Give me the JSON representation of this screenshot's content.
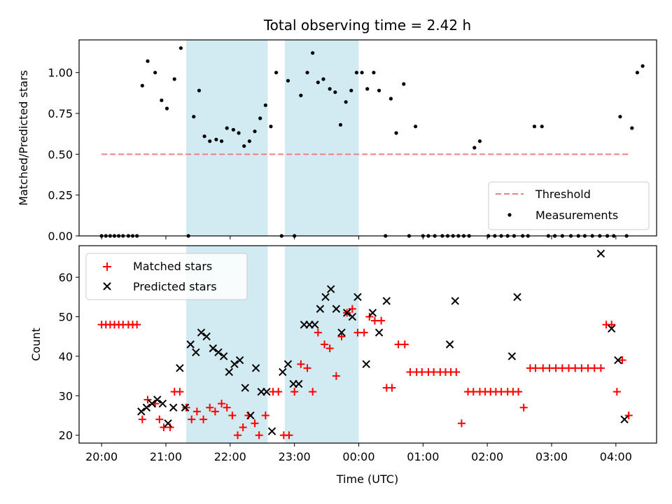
{
  "chart_data": [
    {
      "type": "scatter",
      "title": "Total observing time = 2.42 h",
      "xlabel": "",
      "ylabel": "Matched/Predicted stars",
      "xlim": [
        "19:39",
        "04:38"
      ],
      "ylim": [
        0,
        1.2
      ],
      "yticks": [
        "0.00",
        "0.25",
        "0.50",
        "0.75",
        "1.00"
      ],
      "shaded_spans": [
        [
          "21:19",
          "22:35"
        ],
        [
          "22:51",
          "00:00"
        ]
      ],
      "threshold": {
        "value": 0.5,
        "x_range": [
          "20:00",
          "04:12"
        ],
        "color": "#f08080",
        "style": "dashed"
      },
      "legend": {
        "position": "lower right",
        "entries": [
          "Threshold",
          "Measurements"
        ]
      },
      "series": [
        {
          "name": "Measurements",
          "marker": "dot",
          "color": "#000000",
          "points": [
            [
              "20:00",
              0
            ],
            [
              "20:04",
              0
            ],
            [
              "20:08",
              0
            ],
            [
              "20:12",
              0
            ],
            [
              "20:16",
              0
            ],
            [
              "20:20",
              0
            ],
            [
              "20:25",
              0
            ],
            [
              "20:29",
              0
            ],
            [
              "20:33",
              0
            ],
            [
              "20:38",
              0.92
            ],
            [
              "20:43",
              1.07
            ],
            [
              "20:50",
              1.0
            ],
            [
              "20:56",
              0.83
            ],
            [
              "21:01",
              0.78
            ],
            [
              "21:08",
              0.96
            ],
            [
              "21:14",
              1.15
            ],
            [
              "21:21",
              0
            ],
            [
              "21:26",
              0.73
            ],
            [
              "21:31",
              0.89
            ],
            [
              "21:36",
              0.61
            ],
            [
              "21:41",
              0.58
            ],
            [
              "21:47",
              0.59
            ],
            [
              "21:52",
              0.58
            ],
            [
              "21:57",
              0.66
            ],
            [
              "22:03",
              0.65
            ],
            [
              "22:08",
              0.63
            ],
            [
              "22:13",
              0.55
            ],
            [
              "22:18",
              0.58
            ],
            [
              "22:23",
              0.64
            ],
            [
              "22:28",
              0.72
            ],
            [
              "22:33",
              0.8
            ],
            [
              "22:38",
              0.67
            ],
            [
              "22:43",
              1.0
            ],
            [
              "22:48",
              0
            ],
            [
              "22:54",
              0.95
            ],
            [
              "23:00",
              0
            ],
            [
              "23:06",
              0.86
            ],
            [
              "23:12",
              1.0
            ],
            [
              "23:17",
              1.12
            ],
            [
              "23:22",
              0.94
            ],
            [
              "23:27",
              0.96
            ],
            [
              "23:33",
              0.9
            ],
            [
              "23:38",
              0.88
            ],
            [
              "23:43",
              0.68
            ],
            [
              "23:48",
              0.82
            ],
            [
              "23:53",
              0.89
            ],
            [
              "23:58",
              1.0
            ],
            [
              "00:03",
              1.0
            ],
            [
              "00:08",
              0.9
            ],
            [
              "00:14",
              1.0
            ],
            [
              "00:19",
              0.89
            ],
            [
              "00:25",
              0
            ],
            [
              "00:30",
              0.84
            ],
            [
              "00:35",
              0.63
            ],
            [
              "00:42",
              0.93
            ],
            [
              "00:47",
              0
            ],
            [
              "00:53",
              0.67
            ],
            [
              "01:00",
              0
            ],
            [
              "01:05",
              0
            ],
            [
              "01:11",
              0
            ],
            [
              "01:18",
              0
            ],
            [
              "01:23",
              0
            ],
            [
              "01:28",
              0
            ],
            [
              "01:33",
              0
            ],
            [
              "01:38",
              0
            ],
            [
              "01:43",
              0
            ],
            [
              "01:48",
              0.54
            ],
            [
              "01:53",
              0.58
            ],
            [
              "02:01",
              0
            ],
            [
              "02:07",
              0
            ],
            [
              "02:13",
              0
            ],
            [
              "02:19",
              0
            ],
            [
              "02:25",
              0
            ],
            [
              "02:33",
              0
            ],
            [
              "02:38",
              0
            ],
            [
              "02:44",
              0.67
            ],
            [
              "02:51",
              0.67
            ],
            [
              "02:57",
              0
            ],
            [
              "03:03",
              0
            ],
            [
              "03:10",
              0
            ],
            [
              "03:18",
              0
            ],
            [
              "03:25",
              0
            ],
            [
              "03:31",
              0
            ],
            [
              "03:38",
              0
            ],
            [
              "03:45",
              0
            ],
            [
              "03:52",
              0
            ],
            [
              "03:58",
              0
            ],
            [
              "04:04",
              0.73
            ],
            [
              "04:10",
              0
            ],
            [
              "04:15",
              0.66
            ],
            [
              "04:20",
              1.0
            ],
            [
              "04:25",
              1.04
            ]
          ]
        }
      ]
    },
    {
      "type": "scatter",
      "title": "",
      "xlabel": "Time (UTC)",
      "ylabel": "Count",
      "xlim": [
        "19:39",
        "04:38"
      ],
      "ylim": [
        18,
        68
      ],
      "yticks": [
        "20",
        "30",
        "40",
        "50",
        "60"
      ],
      "xticks": [
        "20:00",
        "21:00",
        "22:00",
        "23:00",
        "00:00",
        "01:00",
        "02:00",
        "03:00",
        "04:00"
      ],
      "shaded_spans": [
        [
          "21:19",
          "22:35"
        ],
        [
          "22:51",
          "00:00"
        ]
      ],
      "legend": {
        "position": "upper left",
        "entries": [
          "Matched stars",
          "Predicted stars"
        ]
      },
      "series": [
        {
          "name": "Matched stars",
          "marker": "plus",
          "color": "#ff0000",
          "points": [
            [
              "20:00",
              48
            ],
            [
              "20:04",
              48
            ],
            [
              "20:08",
              48
            ],
            [
              "20:12",
              48
            ],
            [
              "20:16",
              48
            ],
            [
              "20:20",
              48
            ],
            [
              "20:25",
              48
            ],
            [
              "20:29",
              48
            ],
            [
              "20:33",
              48
            ],
            [
              "20:38",
              24
            ],
            [
              "20:43",
              29
            ],
            [
              "20:50",
              28
            ],
            [
              "20:54",
              24
            ],
            [
              "20:58",
              22
            ],
            [
              "21:04",
              22
            ],
            [
              "21:08",
              31
            ],
            [
              "21:13",
              31
            ],
            [
              "21:19",
              27
            ],
            [
              "21:24",
              24
            ],
            [
              "21:29",
              26
            ],
            [
              "21:35",
              24
            ],
            [
              "21:41",
              27
            ],
            [
              "21:46",
              26
            ],
            [
              "21:52",
              28
            ],
            [
              "21:57",
              27
            ],
            [
              "22:02",
              25
            ],
            [
              "22:07",
              20
            ],
            [
              "22:12",
              22
            ],
            [
              "22:17",
              25
            ],
            [
              "22:23",
              23
            ],
            [
              "22:27",
              20
            ],
            [
              "22:33",
              25
            ],
            [
              "22:40",
              31
            ],
            [
              "22:45",
              31
            ],
            [
              "22:50",
              20
            ],
            [
              "22:55",
              20
            ],
            [
              "23:00",
              31
            ],
            [
              "23:06",
              38
            ],
            [
              "23:12",
              37
            ],
            [
              "23:17",
              31
            ],
            [
              "23:22",
              46
            ],
            [
              "23:28",
              43
            ],
            [
              "23:33",
              42
            ],
            [
              "23:39",
              35
            ],
            [
              "23:44",
              45
            ],
            [
              "23:49",
              51
            ],
            [
              "23:54",
              52
            ],
            [
              "23:59",
              46
            ],
            [
              "00:05",
              46
            ],
            [
              "00:10",
              50
            ],
            [
              "00:15",
              49
            ],
            [
              "00:21",
              49
            ],
            [
              "00:26",
              32
            ],
            [
              "00:31",
              32
            ],
            [
              "00:37",
              43
            ],
            [
              "00:43",
              43
            ],
            [
              "00:48",
              36
            ],
            [
              "00:54",
              36
            ],
            [
              "00:59",
              36
            ],
            [
              "01:05",
              36
            ],
            [
              "01:10",
              36
            ],
            [
              "01:16",
              36
            ],
            [
              "01:21",
              36
            ],
            [
              "01:26",
              36
            ],
            [
              "01:31",
              36
            ],
            [
              "01:36",
              23
            ],
            [
              "01:42",
              31
            ],
            [
              "01:47",
              31
            ],
            [
              "01:53",
              31
            ],
            [
              "01:58",
              31
            ],
            [
              "02:03",
              31
            ],
            [
              "02:08",
              31
            ],
            [
              "02:13",
              31
            ],
            [
              "02:19",
              31
            ],
            [
              "02:24",
              31
            ],
            [
              "02:29",
              31
            ],
            [
              "02:34",
              27
            ],
            [
              "02:40",
              37
            ],
            [
              "02:45",
              37
            ],
            [
              "02:52",
              37
            ],
            [
              "02:58",
              37
            ],
            [
              "03:04",
              37
            ],
            [
              "03:10",
              37
            ],
            [
              "03:16",
              37
            ],
            [
              "03:22",
              37
            ],
            [
              "03:28",
              37
            ],
            [
              "03:34",
              37
            ],
            [
              "03:40",
              37
            ],
            [
              "03:46",
              37
            ],
            [
              "03:51",
              48
            ],
            [
              "03:56",
              48
            ],
            [
              "04:01",
              31
            ],
            [
              "04:06",
              39
            ],
            [
              "04:12",
              25
            ]
          ]
        },
        {
          "name": "Predicted stars",
          "marker": "x",
          "color": "#000000",
          "points": [
            [
              "20:37",
              26
            ],
            [
              "20:42",
              27
            ],
            [
              "20:47",
              28
            ],
            [
              "20:52",
              29
            ],
            [
              "20:57",
              28
            ],
            [
              "21:02",
              23
            ],
            [
              "21:07",
              27
            ],
            [
              "21:13",
              37
            ],
            [
              "21:18",
              27
            ],
            [
              "21:23",
              43
            ],
            [
              "21:28",
              41
            ],
            [
              "21:33",
              46
            ],
            [
              "21:38",
              45
            ],
            [
              "21:44",
              42
            ],
            [
              "21:49",
              41
            ],
            [
              "21:54",
              40
            ],
            [
              "21:59",
              36
            ],
            [
              "22:04",
              38
            ],
            [
              "22:09",
              39
            ],
            [
              "22:14",
              32
            ],
            [
              "22:19",
              25
            ],
            [
              "22:24",
              37
            ],
            [
              "22:29",
              31
            ],
            [
              "22:34",
              31
            ],
            [
              "22:39",
              21
            ],
            [
              "22:49",
              36
            ],
            [
              "22:54",
              38
            ],
            [
              "22:59",
              33
            ],
            [
              "23:04",
              33
            ],
            [
              "23:09",
              48
            ],
            [
              "23:14",
              48
            ],
            [
              "23:19",
              48
            ],
            [
              "23:24",
              52
            ],
            [
              "23:29",
              55
            ],
            [
              "23:34",
              57
            ],
            [
              "23:39",
              52
            ],
            [
              "23:44",
              46
            ],
            [
              "23:49",
              51
            ],
            [
              "23:54",
              50
            ],
            [
              "23:59",
              55
            ],
            [
              "00:07",
              38
            ],
            [
              "00:13",
              51
            ],
            [
              "00:19",
              46
            ],
            [
              "00:26",
              54
            ],
            [
              "01:25",
              43
            ],
            [
              "01:30",
              54
            ],
            [
              "02:23",
              40
            ],
            [
              "02:28",
              55
            ],
            [
              "03:46",
              66
            ],
            [
              "03:56",
              47
            ],
            [
              "04:02",
              39
            ],
            [
              "04:08",
              24
            ]
          ]
        }
      ]
    }
  ]
}
